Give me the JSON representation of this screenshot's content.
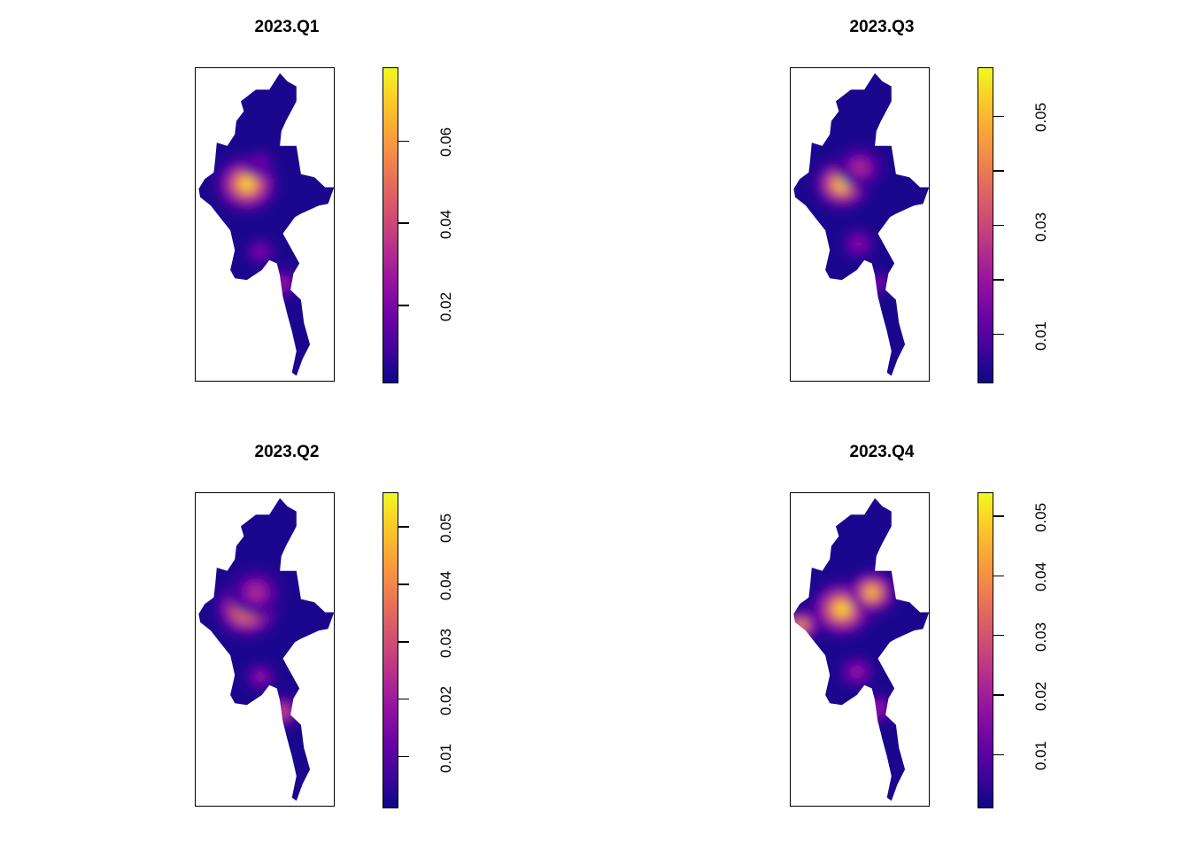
{
  "figure": {
    "panels": [
      {
        "title": "2023.Q1",
        "legend": {
          "range": [
            0.001,
            0.078
          ],
          "ticks": [
            0.02,
            0.04,
            0.06
          ],
          "labels": [
            "0.02",
            "0.04",
            "0.06"
          ]
        },
        "hotspots": [
          {
            "name": "central-dry-zone",
            "lon": 95.4,
            "lat": 21.6,
            "intensity": 1.0,
            "spread": 1.0
          },
          {
            "name": "northern-upper",
            "lon": 96.2,
            "lat": 22.8,
            "intensity": 0.25,
            "spread": 0.8
          },
          {
            "name": "bago-yangon",
            "lon": 96.3,
            "lat": 17.5,
            "intensity": 0.3,
            "spread": 0.7
          },
          {
            "name": "mon-tanintharyi",
            "lon": 97.8,
            "lat": 15.6,
            "intensity": 0.4,
            "spread": 0.6
          }
        ]
      },
      {
        "title": "2023.Q2",
        "legend": {
          "range": [
            0.001,
            0.056
          ],
          "ticks": [
            0.01,
            0.02,
            0.03,
            0.04,
            0.05
          ],
          "labels": [
            "0.01",
            "0.02",
            "0.03",
            "0.04",
            "0.05"
          ]
        },
        "hotspots": [
          {
            "name": "central-dry-zone",
            "lon": 95.4,
            "lat": 21.6,
            "intensity": 1.0,
            "spread": 1.0
          },
          {
            "name": "northern-upper",
            "lon": 96.0,
            "lat": 22.6,
            "intensity": 0.45,
            "spread": 0.9
          },
          {
            "name": "bago-yangon",
            "lon": 96.3,
            "lat": 17.5,
            "intensity": 0.35,
            "spread": 0.7
          },
          {
            "name": "mon-tanintharyi",
            "lon": 97.8,
            "lat": 15.4,
            "intensity": 0.6,
            "spread": 0.6
          }
        ]
      },
      {
        "title": "2023.Q3",
        "legend": {
          "range": [
            0.001,
            0.059
          ],
          "ticks": [
            0.01,
            0.02,
            0.03,
            0.04,
            0.05
          ],
          "labels": [
            "0.01",
            "0.03",
            "0.05"
          ]
        },
        "hotspots": [
          {
            "name": "central-dry-zone",
            "lon": 95.4,
            "lat": 21.6,
            "intensity": 1.0,
            "spread": 0.9
          },
          {
            "name": "northern-upper",
            "lon": 96.6,
            "lat": 22.6,
            "intensity": 0.45,
            "spread": 0.8
          },
          {
            "name": "bago-yangon",
            "lon": 96.5,
            "lat": 18.0,
            "intensity": 0.3,
            "spread": 0.8
          },
          {
            "name": "mon-tanintharyi",
            "lon": 97.8,
            "lat": 15.6,
            "intensity": 0.3,
            "spread": 0.6
          }
        ]
      },
      {
        "title": "2023.Q4",
        "legend": {
          "range": [
            0.001,
            0.054
          ],
          "ticks": [
            0.01,
            0.02,
            0.03,
            0.04,
            0.05
          ],
          "labels": [
            "0.01",
            "0.02",
            "0.03",
            "0.04",
            "0.05"
          ]
        },
        "hotspots": [
          {
            "name": "central-dry-zone",
            "lon": 95.4,
            "lat": 21.6,
            "intensity": 1.0,
            "spread": 1.0
          },
          {
            "name": "northern-shan-east",
            "lon": 97.4,
            "lat": 22.6,
            "intensity": 0.95,
            "spread": 0.8
          },
          {
            "name": "rakhine-coast",
            "lon": 92.7,
            "lat": 20.6,
            "intensity": 0.85,
            "spread": 0.6
          },
          {
            "name": "bago-yangon",
            "lon": 96.4,
            "lat": 17.8,
            "intensity": 0.35,
            "spread": 0.8
          },
          {
            "name": "mon-tanintharyi",
            "lon": 97.8,
            "lat": 15.6,
            "intensity": 0.4,
            "spread": 0.6
          }
        ]
      }
    ]
  }
}
